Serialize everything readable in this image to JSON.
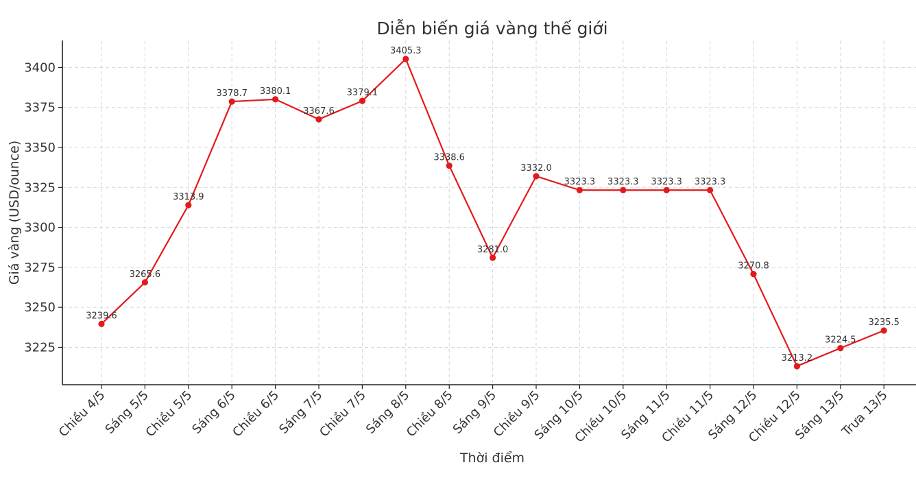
{
  "chart_data": {
    "type": "line",
    "title": "Diễn biến giá vàng thế giới",
    "xlabel": "Thời điểm",
    "ylabel": "Giá vàng (USD/ounce)",
    "categories": [
      "Chiều 4/5",
      "Sáng 5/5",
      "Chiều 5/5",
      "Sáng 6/5",
      "Chiều 6/5",
      "Sáng 7/5",
      "Chiều 7/5",
      "Sáng 8/5",
      "Chiều 8/5",
      "Sáng 9/5",
      "Chiều 9/5",
      "Sáng 10/5",
      "Chiều 10/5",
      "Sáng 11/5",
      "Chiều 11/5",
      "Sáng 12/5",
      "Chiều 12/5",
      "Sáng 13/5",
      "Trưa 13/5"
    ],
    "series": [
      {
        "values": [
          3239.6,
          3265.6,
          3313.9,
          3378.7,
          3380.1,
          3367.6,
          3379.1,
          3405.3,
          3338.6,
          3281.0,
          3332.0,
          3323.3,
          3323.3,
          3323.3,
          3323.3,
          3270.8,
          3213.2,
          3224.5,
          3235.5
        ],
        "labels": [
          "3239.6",
          "3265.6",
          "3313.9",
          "3378.7",
          "3380.1",
          "3367.6",
          "3379.1",
          "3405.3",
          "3338.6",
          "3281.0",
          "3332.0",
          "3323.3",
          "3323.3",
          "3323.3",
          "3323.3",
          "3270.8",
          "3213.2",
          "3224.5",
          "3235.5"
        ],
        "color": "#e31a1c"
      }
    ],
    "yticks": [
      3225,
      3250,
      3275,
      3300,
      3325,
      3350,
      3375,
      3400
    ],
    "ylim": [
      3201.6,
      3416.9
    ],
    "grid": true,
    "legend": "none"
  }
}
